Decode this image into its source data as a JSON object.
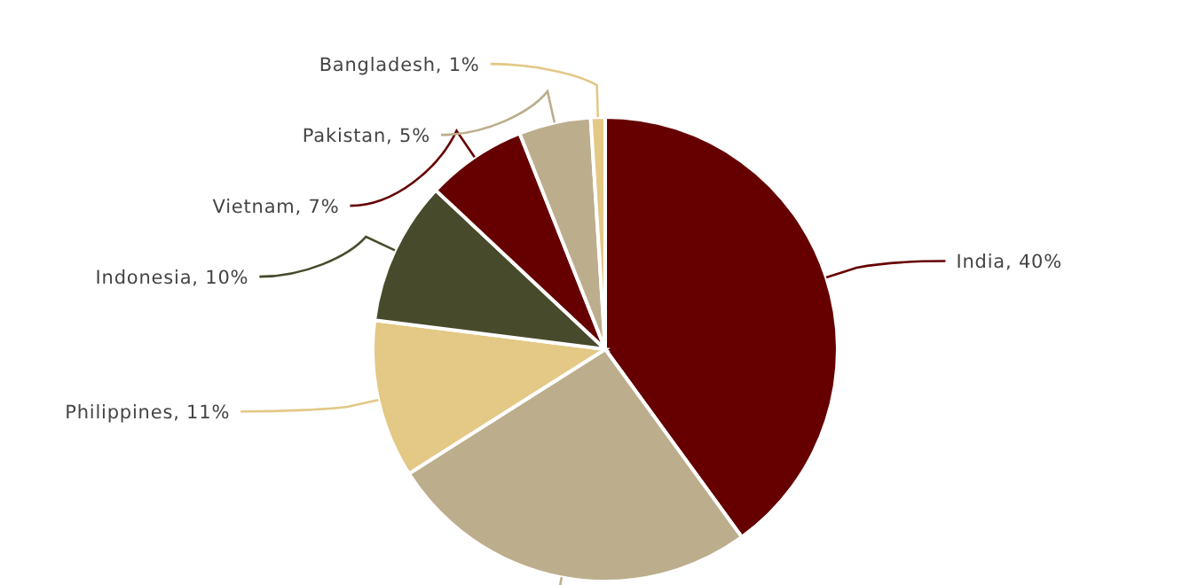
{
  "chart_data": {
    "type": "pie",
    "categories": [
      "India",
      null,
      "Philippines",
      "Indonesia",
      "Vietnam",
      "Pakistan",
      "Bangladesh"
    ],
    "values": [
      40,
      26,
      11,
      10,
      7,
      5,
      1
    ],
    "value_labels": [
      "40%",
      null,
      "11%",
      "10%",
      "7%",
      "5%",
      "1%"
    ],
    "colors": [
      "#660000",
      "#bcad8c",
      "#e3c886",
      "#474b2c",
      "#660000",
      "#bcad8c",
      "#e3c886"
    ]
  }
}
